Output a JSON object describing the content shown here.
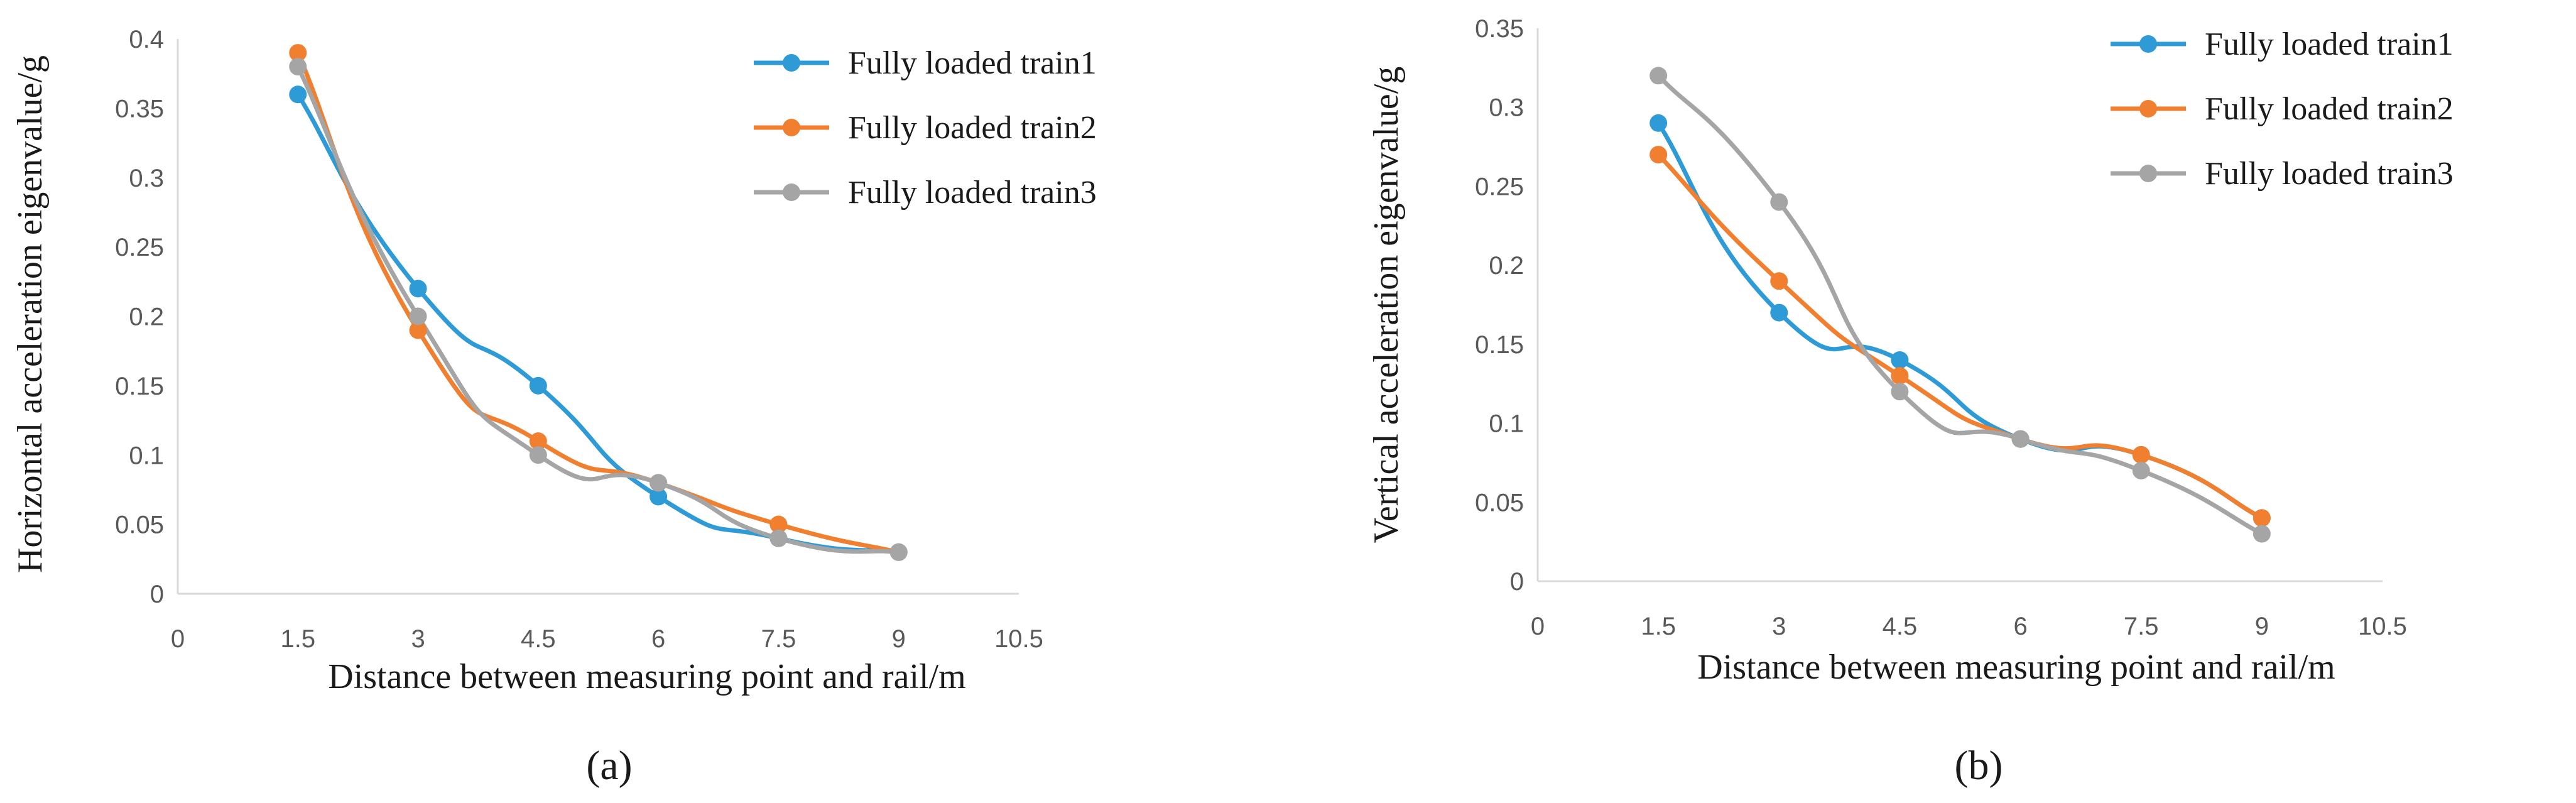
{
  "chart_data": [
    {
      "type": "line",
      "panel_label": "a",
      "title": "",
      "xlabel": "Distance between measuring point and rail/m",
      "ylabel": "Horizontal acceleration eigenvalue/g",
      "xlim": [
        0,
        10.5
      ],
      "ylim": [
        0,
        0.4
      ],
      "xticks": [
        0,
        1.5,
        3,
        4.5,
        6,
        7.5,
        9,
        10.5
      ],
      "yticks": [
        0,
        0.05,
        0.1,
        0.15,
        0.2,
        0.25,
        0.3,
        0.35,
        0.4
      ],
      "xtick_labels": [
        "0",
        "1.5",
        "3",
        "4.5",
        "6",
        "7.5",
        "9",
        "10.5"
      ],
      "ytick_labels": [
        "0",
        "0.05",
        "0.1",
        "0.15",
        "0.2",
        "0.25",
        "0.3",
        "0.35",
        "0.4"
      ],
      "grid": false,
      "legend_position": "top-right",
      "x": [
        1.5,
        3,
        4.5,
        6,
        7.5,
        9
      ],
      "series": [
        {
          "name": "Fully loaded train1",
          "color": "#2E9BD6",
          "values": [
            0.36,
            0.22,
            0.15,
            0.07,
            0.04,
            0.03
          ]
        },
        {
          "name": "Fully loaded train2",
          "color": "#F07F2F",
          "values": [
            0.39,
            0.19,
            0.11,
            0.08,
            0.05,
            0.03
          ]
        },
        {
          "name": "Fully loaded train3",
          "color": "#A5A5A5",
          "values": [
            0.38,
            0.2,
            0.1,
            0.08,
            0.04,
            0.03
          ]
        }
      ]
    },
    {
      "type": "line",
      "panel_label": "b",
      "title": "",
      "xlabel": "Distance between measuring point and rail/m",
      "ylabel": "Vertical acceleration eigenvalue/g",
      "xlim": [
        0,
        10.5
      ],
      "ylim": [
        0,
        0.35
      ],
      "xticks": [
        0,
        1.5,
        3,
        4.5,
        6,
        7.5,
        9,
        10.5
      ],
      "yticks": [
        0,
        0.05,
        0.1,
        0.15,
        0.2,
        0.25,
        0.3,
        0.35
      ],
      "xtick_labels": [
        "0",
        "1.5",
        "3",
        "4.5",
        "6",
        "7.5",
        "9",
        "10.5"
      ],
      "ytick_labels": [
        "0",
        "0.05",
        "0.1",
        "0.15",
        "0.2",
        "0.25",
        "0.3",
        "0.35"
      ],
      "grid": false,
      "legend_position": "top-right",
      "x": [
        1.5,
        3,
        4.5,
        6,
        7.5,
        9
      ],
      "series": [
        {
          "name": "Fully loaded train1",
          "color": "#2E9BD6",
          "values": [
            0.29,
            0.17,
            0.14,
            0.09,
            0.08,
            0.04
          ]
        },
        {
          "name": "Fully loaded train2",
          "color": "#F07F2F",
          "values": [
            0.27,
            0.19,
            0.13,
            0.09,
            0.08,
            0.04
          ]
        },
        {
          "name": "Fully loaded train3",
          "color": "#A5A5A5",
          "values": [
            0.32,
            0.24,
            0.12,
            0.09,
            0.07,
            0.03
          ]
        }
      ]
    }
  ],
  "captions": {
    "a": "(a)",
    "b": "(b)"
  }
}
